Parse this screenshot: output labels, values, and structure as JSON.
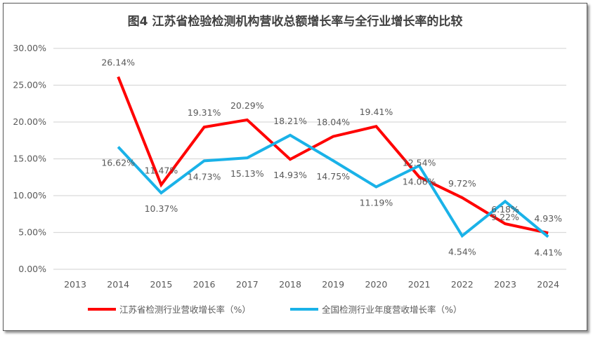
{
  "chart_data": {
    "type": "line",
    "title": "图4 江苏省检验检测机构营收总额增长率与全行业增长率的比较",
    "categories": [
      "2013",
      "2014",
      "2015",
      "2016",
      "2017",
      "2018",
      "2019",
      "2020",
      "2021",
      "2022",
      "2023",
      "2024"
    ],
    "ylim": [
      0,
      30
    ],
    "yticks": [
      "0.00%",
      "5.00%",
      "10.00%",
      "15.00%",
      "20.00%",
      "25.00%",
      "30.00%"
    ],
    "grid": true,
    "legend": "bottom",
    "series": [
      {
        "name": "江苏省检测行业营收增长率（%）",
        "color": "#FF0000",
        "values": [
          null,
          26.14,
          11.47,
          19.31,
          20.29,
          14.93,
          18.04,
          19.41,
          12.54,
          9.72,
          6.18,
          4.93
        ],
        "labels": [
          null,
          "26.14%",
          "11.47%",
          "19.31%",
          "20.29%",
          "14.93%",
          "18.04%",
          "19.41%",
          "12.54%",
          "9.72%",
          "6.18%",
          "4.93%"
        ]
      },
      {
        "name": "全国检测行业年度营收增长率（%）",
        "color": "#1AB2E8",
        "values": [
          null,
          16.62,
          10.37,
          14.73,
          15.13,
          18.21,
          14.75,
          11.19,
          14.06,
          4.54,
          9.22,
          4.41
        ],
        "labels": [
          null,
          "16.62%",
          "10.37%",
          "14.73%",
          "15.13%",
          "18.21%",
          "14.75%",
          "11.19%",
          "14.06%",
          "4.54%",
          "9.22%",
          "4.41%"
        ]
      }
    ]
  }
}
